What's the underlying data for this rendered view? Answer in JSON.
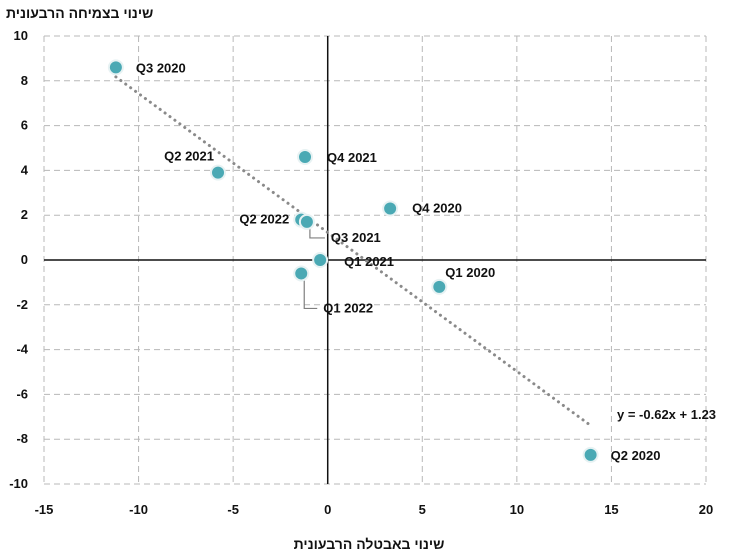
{
  "chart_data": {
    "type": "scatter",
    "title": "",
    "xlabel": "שינוי באבטלה הרבעונית",
    "ylabel": "שינוי בצמיחה הרבעונית",
    "xlim": [
      -15,
      20
    ],
    "ylim": [
      -10,
      10
    ],
    "x_ticks": [
      -15,
      -10,
      -5,
      0,
      5,
      10,
      15,
      20
    ],
    "y_ticks": [
      -10,
      -8,
      -6,
      -4,
      -2,
      0,
      2,
      4,
      6,
      8,
      10
    ],
    "grid": true,
    "legend": "none",
    "colors": {
      "point_fill": "#4aa9b4",
      "point_stroke": "#e7f2f3",
      "trend": "#8a8a8a",
      "grid": "#b8b8b8",
      "axis": "#111111",
      "leader": "#7f7f7f"
    },
    "points": [
      {
        "label": "Q3 2020",
        "x": -11.2,
        "y": 8.6
      },
      {
        "label": "Q2 2021",
        "x": -5.8,
        "y": 3.9
      },
      {
        "label": "Q4 2021",
        "x": -1.2,
        "y": 4.6
      },
      {
        "label": "Q2 2022",
        "x": -1.4,
        "y": 1.8
      },
      {
        "label": "Q3 2021",
        "x": -1.1,
        "y": 1.7
      },
      {
        "label": "Q1 2021",
        "x": -0.4,
        "y": 0.0
      },
      {
        "label": "Q1 2022",
        "x": -1.4,
        "y": -0.6
      },
      {
        "label": "Q4 2020",
        "x": 3.3,
        "y": 2.3
      },
      {
        "label": "Q1 2020",
        "x": 5.9,
        "y": -1.2
      },
      {
        "label": "Q2 2020",
        "x": 13.9,
        "y": -8.7
      }
    ],
    "trendline": {
      "equation": "y = -0.62x + 1.23",
      "slope": -0.62,
      "intercept": 1.23,
      "x_start": -11.2,
      "x_end": 13.9
    }
  }
}
